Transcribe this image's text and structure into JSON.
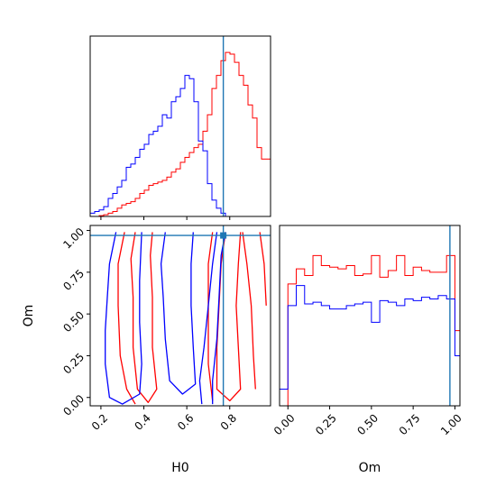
{
  "chart_data": {
    "type": "corner",
    "colors": {
      "red": "#ff0000",
      "blue": "#0000ff",
      "truth": "#1f77b4"
    },
    "truth": {
      "H0": 0.77,
      "Om": 0.97
    },
    "axes": {
      "H0": {
        "label": "H0",
        "range": [
          0.15,
          0.99
        ],
        "ticks": [
          "0.2",
          "0.4",
          "0.6",
          "0.8"
        ],
        "tick_values": [
          0.2,
          0.4,
          0.6,
          0.8
        ]
      },
      "Om": {
        "label": "Om",
        "range": [
          -0.05,
          1.03
        ],
        "ticks": [
          "0.00",
          "0.25",
          "0.50",
          "0.75",
          "1.00"
        ],
        "tick_values": [
          0.0,
          0.25,
          0.5,
          0.75,
          1.0
        ]
      }
    },
    "hist_H0": {
      "edges": [
        0.15,
        0.171,
        0.192,
        0.213,
        0.234,
        0.255,
        0.276,
        0.297,
        0.318,
        0.339,
        0.36,
        0.381,
        0.402,
        0.423,
        0.444,
        0.465,
        0.486,
        0.507,
        0.528,
        0.549,
        0.57,
        0.591,
        0.612,
        0.633,
        0.654,
        0.675,
        0.696,
        0.717,
        0.738,
        0.759,
        0.78,
        0.801,
        0.822,
        0.843,
        0.864,
        0.885,
        0.906,
        0.927,
        0.948,
        0.969,
        0.99
      ],
      "series": [
        {
          "color": "red",
          "counts": [
            0.0,
            0.0,
            0.005,
            0.01,
            0.02,
            0.03,
            0.05,
            0.07,
            0.08,
            0.09,
            0.11,
            0.14,
            0.16,
            0.19,
            0.2,
            0.21,
            0.22,
            0.24,
            0.27,
            0.29,
            0.33,
            0.36,
            0.39,
            0.42,
            0.44,
            0.52,
            0.62,
            0.78,
            0.86,
            0.95,
            1.0,
            0.99,
            0.94,
            0.86,
            0.8,
            0.68,
            0.6,
            0.42,
            0.35,
            0.35
          ]
        },
        {
          "color": "blue",
          "counts": [
            0.02,
            0.03,
            0.04,
            0.06,
            0.11,
            0.14,
            0.18,
            0.22,
            0.3,
            0.32,
            0.36,
            0.41,
            0.44,
            0.5,
            0.52,
            0.55,
            0.62,
            0.6,
            0.7,
            0.73,
            0.78,
            0.86,
            0.84,
            0.7,
            0.46,
            0.4,
            0.2,
            0.1,
            0.05,
            0.02,
            0.0,
            0.0,
            0.0,
            0.0,
            0.0,
            0.0,
            0.0,
            0.0,
            0.0,
            0.0
          ]
        }
      ]
    },
    "hist_Om": {
      "edges": [
        -0.05,
        0.0,
        0.05,
        0.1,
        0.15,
        0.2,
        0.25,
        0.3,
        0.35,
        0.4,
        0.45,
        0.5,
        0.55,
        0.6,
        0.65,
        0.7,
        0.75,
        0.8,
        0.85,
        0.9,
        0.95,
        1.0,
        1.03
      ],
      "series": [
        {
          "color": "red",
          "counts": [
            0.0,
            0.73,
            0.82,
            0.78,
            0.9,
            0.84,
            0.83,
            0.82,
            0.84,
            0.78,
            0.79,
            0.9,
            0.77,
            0.81,
            0.9,
            0.78,
            0.83,
            0.81,
            0.8,
            0.8,
            0.9,
            0.45
          ]
        },
        {
          "color": "blue",
          "counts": [
            0.1,
            0.6,
            0.72,
            0.61,
            0.62,
            0.6,
            0.58,
            0.58,
            0.6,
            0.61,
            0.62,
            0.5,
            0.63,
            0.62,
            0.6,
            0.64,
            0.63,
            0.65,
            0.64,
            0.66,
            0.64,
            0.3
          ]
        }
      ]
    },
    "contour_red": [
      [
        [
          0.36,
          0.99
        ],
        [
          0.34,
          0.83
        ],
        [
          0.35,
          0.6
        ],
        [
          0.35,
          0.3
        ],
        [
          0.37,
          0.05
        ],
        [
          0.42,
          -0.03
        ],
        [
          0.46,
          0.05
        ],
        [
          0.44,
          0.3
        ],
        [
          0.44,
          0.6
        ],
        [
          0.43,
          0.85
        ],
        [
          0.44,
          0.99
        ]
      ],
      [
        [
          0.31,
          0.99
        ],
        [
          0.28,
          0.8
        ],
        [
          0.28,
          0.55
        ],
        [
          0.29,
          0.25
        ],
        [
          0.32,
          0.05
        ],
        [
          0.36,
          -0.04
        ]
      ],
      [
        [
          0.72,
          0.99
        ],
        [
          0.7,
          0.8
        ],
        [
          0.7,
          0.5
        ],
        [
          0.7,
          0.2
        ],
        [
          0.72,
          -0.02
        ]
      ],
      [
        [
          0.78,
          0.99
        ],
        [
          0.76,
          0.8
        ],
        [
          0.75,
          0.55
        ],
        [
          0.74,
          0.3
        ],
        [
          0.74,
          0.05
        ],
        [
          0.8,
          -0.02
        ],
        [
          0.85,
          0.05
        ],
        [
          0.84,
          0.3
        ],
        [
          0.83,
          0.55
        ],
        [
          0.84,
          0.8
        ],
        [
          0.85,
          0.99
        ]
      ],
      [
        [
          0.86,
          0.99
        ],
        [
          0.88,
          0.8
        ],
        [
          0.9,
          0.55
        ],
        [
          0.91,
          0.25
        ],
        [
          0.92,
          0.05
        ]
      ],
      [
        [
          0.94,
          0.99
        ],
        [
          0.96,
          0.8
        ],
        [
          0.97,
          0.55
        ]
      ]
    ],
    "contour_blue": [
      [
        [
          0.27,
          0.99
        ],
        [
          0.24,
          0.8
        ],
        [
          0.23,
          0.6
        ],
        [
          0.22,
          0.4
        ],
        [
          0.22,
          0.2
        ],
        [
          0.24,
          0.0
        ],
        [
          0.3,
          -0.04
        ],
        [
          0.38,
          0.02
        ],
        [
          0.39,
          0.2
        ],
        [
          0.38,
          0.45
        ],
        [
          0.38,
          0.7
        ],
        [
          0.39,
          0.99
        ]
      ],
      [
        [
          0.5,
          0.99
        ],
        [
          0.48,
          0.8
        ],
        [
          0.49,
          0.6
        ],
        [
          0.5,
          0.35
        ],
        [
          0.52,
          0.1
        ],
        [
          0.58,
          0.02
        ],
        [
          0.64,
          0.08
        ],
        [
          0.63,
          0.3
        ],
        [
          0.62,
          0.55
        ],
        [
          0.62,
          0.8
        ],
        [
          0.63,
          0.99
        ]
      ],
      [
        [
          0.74,
          0.99
        ],
        [
          0.72,
          0.8
        ],
        [
          0.7,
          0.55
        ],
        [
          0.68,
          0.3
        ],
        [
          0.66,
          0.1
        ],
        [
          0.67,
          -0.04
        ]
      ],
      [
        [
          0.78,
          0.99
        ],
        [
          0.76,
          0.85
        ],
        [
          0.75,
          0.6
        ],
        [
          0.74,
          0.35
        ],
        [
          0.72,
          0.1
        ],
        [
          0.72,
          -0.04
        ]
      ]
    ]
  }
}
